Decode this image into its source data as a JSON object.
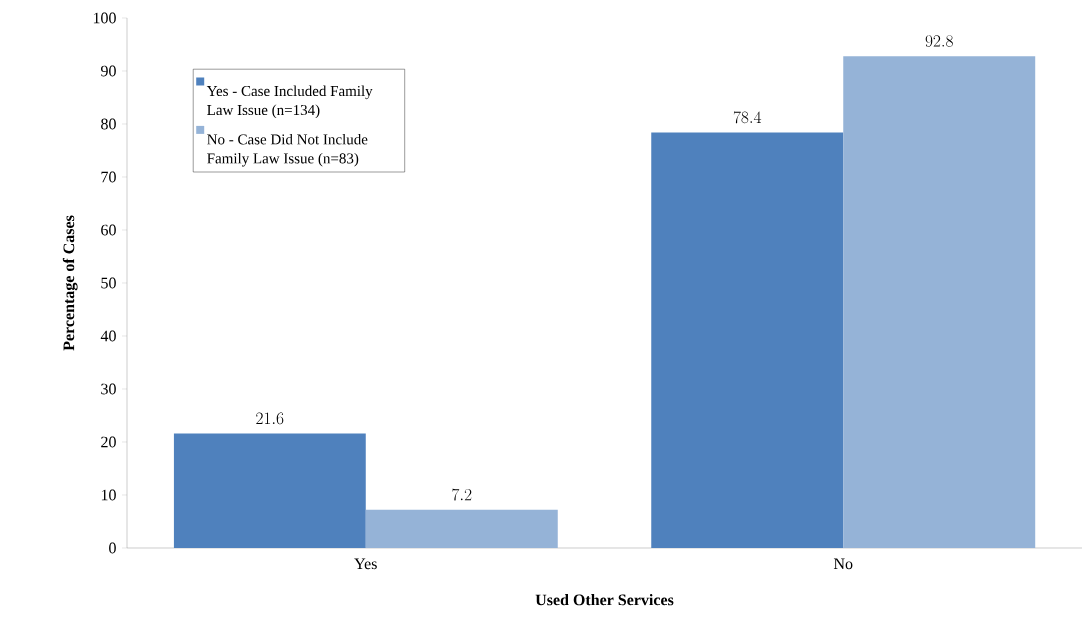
{
  "chart_data": {
    "type": "bar",
    "xlabel": "Used Other Services",
    "ylabel": "Percentage of Cases",
    "categories": [
      "Yes",
      "No"
    ],
    "series": [
      {
        "name": "Yes - Case Included Family Law Issue (n=134)",
        "color": "#4f81bd",
        "values": [
          21.6,
          78.4
        ]
      },
      {
        "name": "No - Case Did Not Include Family Law Issue (n=83)",
        "color": "#95b3d7",
        "values": [
          7.2,
          92.8
        ]
      }
    ],
    "ylim": [
      0,
      100
    ],
    "yticks": [
      0,
      10,
      20,
      30,
      40,
      50,
      60,
      70,
      80,
      90,
      100
    ],
    "data_labels": true,
    "legend": "top left",
    "grid": false
  }
}
